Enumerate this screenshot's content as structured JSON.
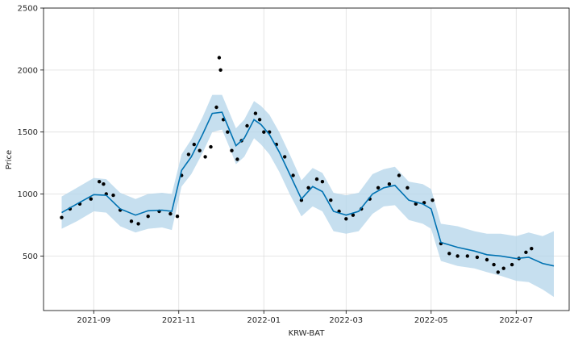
{
  "chart_data": {
    "type": "line",
    "title": "",
    "xlabel": "KRW-BAT",
    "ylabel": "Price",
    "ylim": [
      60,
      2500
    ],
    "xlim": [
      "2021-07-27",
      "2022-08-08"
    ],
    "grid": true,
    "y_ticks": [
      500,
      1000,
      1500,
      2000,
      2500
    ],
    "x_ticks": [
      "2021-09",
      "2021-11",
      "2022-01",
      "2022-03",
      "2022-05",
      "2022-07"
    ],
    "x_tick_dates": [
      "2021-09-01",
      "2021-11-01",
      "2022-01-01",
      "2022-03-01",
      "2022-05-01",
      "2022-07-01"
    ],
    "colors": {
      "forecast": "#0072B2",
      "interval": "#b3d4ea",
      "observed": "#000000"
    },
    "forecast": {
      "x": [
        "2021-08-09",
        "2021-08-20",
        "2021-09-01",
        "2021-09-10",
        "2021-09-20",
        "2021-10-01",
        "2021-10-10",
        "2021-10-20",
        "2021-10-27",
        "2021-11-03",
        "2021-11-10",
        "2021-11-18",
        "2021-11-25",
        "2021-12-02",
        "2021-12-08",
        "2021-12-12",
        "2021-12-18",
        "2021-12-25",
        "2021-12-30",
        "2022-01-05",
        "2022-01-12",
        "2022-01-20",
        "2022-01-28",
        "2022-02-05",
        "2022-02-12",
        "2022-02-20",
        "2022-03-01",
        "2022-03-10",
        "2022-03-20",
        "2022-03-28",
        "2022-04-05",
        "2022-04-15",
        "2022-04-25",
        "2022-05-01",
        "2022-05-08",
        "2022-05-20",
        "2022-06-01",
        "2022-06-10",
        "2022-06-20",
        "2022-07-01",
        "2022-07-10",
        "2022-07-20",
        "2022-07-28"
      ],
      "yhat": [
        850,
        920,
        995,
        990,
        880,
        830,
        865,
        870,
        860,
        1190,
        1300,
        1480,
        1650,
        1660,
        1500,
        1390,
        1450,
        1600,
        1560,
        1480,
        1340,
        1150,
        960,
        1060,
        1020,
        860,
        830,
        860,
        1000,
        1050,
        1070,
        950,
        920,
        880,
        610,
        570,
        540,
        510,
        500,
        480,
        490,
        440,
        420
      ],
      "lower": [
        720,
        780,
        860,
        850,
        740,
        690,
        720,
        730,
        710,
        1060,
        1160,
        1330,
        1500,
        1520,
        1360,
        1240,
        1300,
        1450,
        1400,
        1320,
        1180,
        990,
        820,
        900,
        860,
        700,
        680,
        700,
        840,
        900,
        910,
        790,
        760,
        720,
        460,
        420,
        400,
        370,
        340,
        300,
        290,
        230,
        170
      ],
      "upper": [
        980,
        1050,
        1130,
        1120,
        1010,
        960,
        1000,
        1010,
        1000,
        1320,
        1440,
        1620,
        1800,
        1800,
        1640,
        1530,
        1600,
        1750,
        1710,
        1640,
        1500,
        1310,
        1110,
        1210,
        1170,
        1010,
        990,
        1010,
        1160,
        1200,
        1220,
        1100,
        1080,
        1040,
        760,
        740,
        700,
        680,
        680,
        660,
        690,
        660,
        700
      ]
    },
    "observed": {
      "x": [
        "2021-08-09",
        "2021-08-15",
        "2021-08-22",
        "2021-08-30",
        "2021-09-05",
        "2021-09-08",
        "2021-09-10",
        "2021-09-15",
        "2021-09-20",
        "2021-09-28",
        "2021-10-03",
        "2021-10-10",
        "2021-10-18",
        "2021-10-26",
        "2021-10-31",
        "2021-11-03",
        "2021-11-08",
        "2021-11-12",
        "2021-11-16",
        "2021-11-20",
        "2021-11-24",
        "2021-11-28",
        "2021-11-30",
        "2021-12-01",
        "2021-12-03",
        "2021-12-06",
        "2021-12-09",
        "2021-12-13",
        "2021-12-16",
        "2021-12-20",
        "2021-12-26",
        "2021-12-29",
        "2022-01-01",
        "2022-01-05",
        "2022-01-10",
        "2022-01-16",
        "2022-01-22",
        "2022-01-28",
        "2022-02-02",
        "2022-02-08",
        "2022-02-12",
        "2022-02-18",
        "2022-02-24",
        "2022-03-01",
        "2022-03-06",
        "2022-03-12",
        "2022-03-18",
        "2022-03-24",
        "2022-04-01",
        "2022-04-08",
        "2022-04-14",
        "2022-04-20",
        "2022-04-26",
        "2022-05-02",
        "2022-05-08",
        "2022-05-14",
        "2022-05-20",
        "2022-05-27",
        "2022-06-03",
        "2022-06-10",
        "2022-06-15",
        "2022-06-18",
        "2022-06-22",
        "2022-06-28",
        "2022-07-03",
        "2022-07-08",
        "2022-07-12"
      ],
      "y": [
        810,
        880,
        920,
        960,
        1100,
        1080,
        1000,
        990,
        870,
        780,
        760,
        820,
        860,
        840,
        820,
        1150,
        1320,
        1400,
        1350,
        1300,
        1380,
        1700,
        2100,
        2000,
        1600,
        1500,
        1350,
        1280,
        1430,
        1550,
        1650,
        1600,
        1500,
        1500,
        1400,
        1300,
        1150,
        950,
        1050,
        1120,
        1100,
        950,
        860,
        800,
        830,
        880,
        960,
        1050,
        1080,
        1150,
        1050,
        920,
        930,
        950,
        600,
        520,
        500,
        500,
        490,
        470,
        430,
        370,
        400,
        430,
        480,
        530,
        560
      ]
    }
  }
}
